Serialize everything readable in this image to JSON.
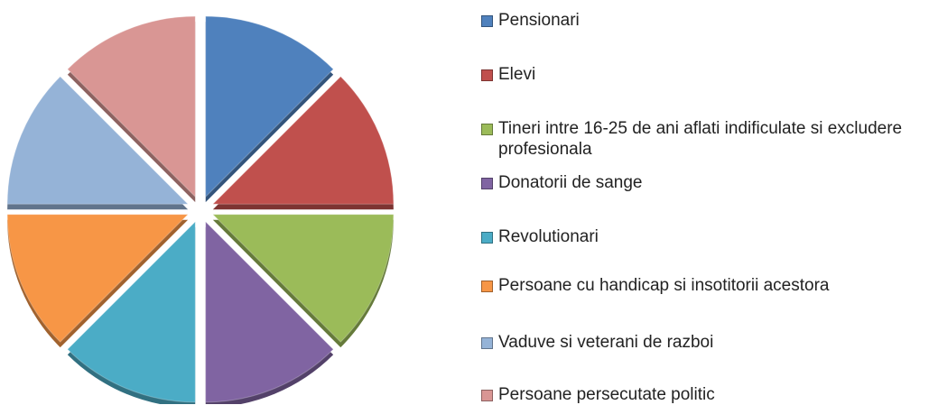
{
  "chart_data": {
    "type": "pie",
    "categories": [
      "Pensionari",
      "Elevi",
      "Tineri intre 16-25 de ani aflati indificulate si excludere profesionala",
      "Donatorii de sange",
      "Revolutionari",
      "Persoane cu handicap si insotitorii acestora",
      "Vaduve si veterani de razboi",
      "Persoane persecutate politic"
    ],
    "values": [
      12.5,
      12.5,
      12.5,
      12.5,
      12.5,
      12.5,
      12.5,
      12.5
    ],
    "colors": [
      "#4f81bd",
      "#c0504d",
      "#9bbb59",
      "#8064a2",
      "#4bacc6",
      "#f79646",
      "#95b3d7",
      "#d99694"
    ],
    "legend": "right"
  }
}
